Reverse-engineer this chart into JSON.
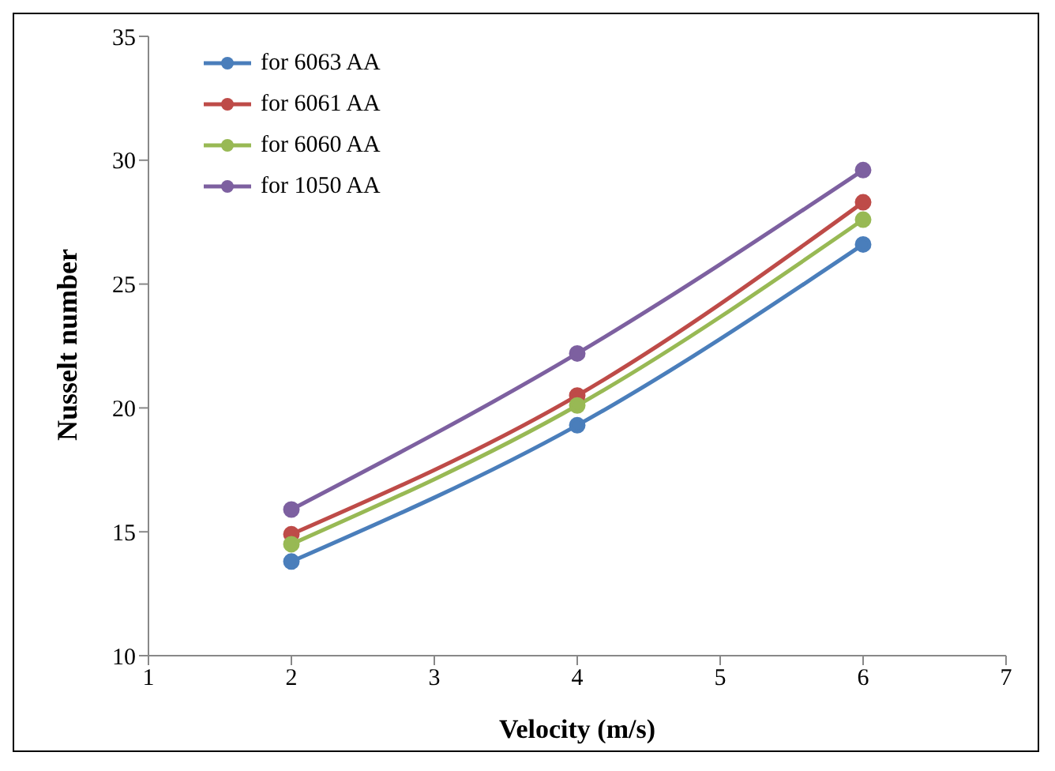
{
  "chart_data": {
    "type": "line",
    "xlabel": "Velocity (m/s)",
    "ylabel": "Nusselt number",
    "x": [
      2,
      4,
      6
    ],
    "series": [
      {
        "name": "for 6063 AA",
        "color": "#4a7ebb",
        "values": [
          13.8,
          19.3,
          26.6
        ]
      },
      {
        "name": "for 6061 AA",
        "color": "#be4b48",
        "values": [
          14.9,
          20.5,
          28.3
        ]
      },
      {
        "name": "for 6060 AA",
        "color": "#98b954",
        "values": [
          14.5,
          20.1,
          27.6
        ]
      },
      {
        "name": "for 1050 AA",
        "color": "#7d60a0",
        "values": [
          15.9,
          22.2,
          29.6
        ]
      }
    ],
    "xlim": [
      1,
      7
    ],
    "xticks": [
      1,
      2,
      3,
      4,
      5,
      6,
      7
    ],
    "ylim": [
      10,
      35
    ],
    "yticks": [
      10,
      15,
      20,
      25,
      30,
      35
    ],
    "grid": false,
    "legend": "top left",
    "marker": "circle",
    "line_style": "solid"
  }
}
